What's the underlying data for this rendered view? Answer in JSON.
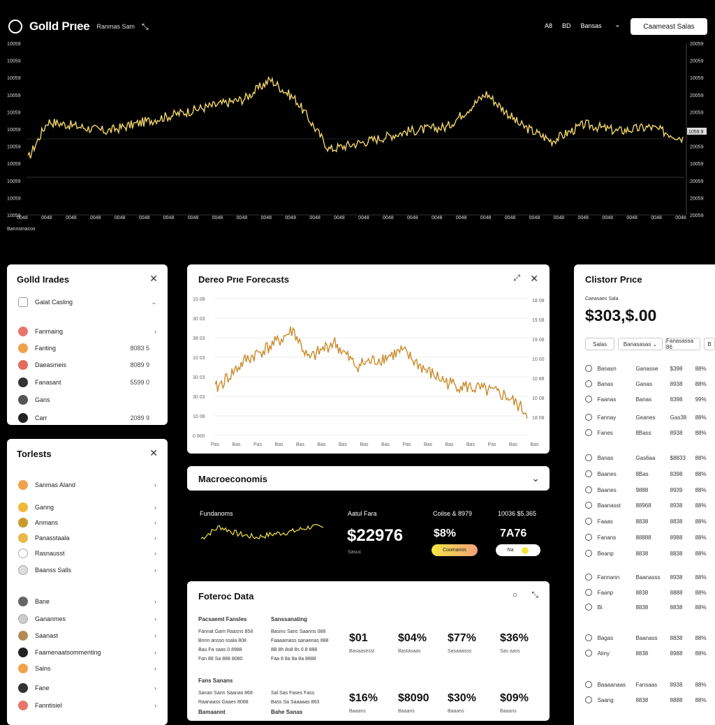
{
  "header": {
    "title": "Golld Prıee",
    "subtitle": "Ranmas Sam",
    "nav": [
      "A8",
      "BD",
      "Bansas"
    ],
    "connect_label": "Caameast Salas"
  },
  "main_chart": {
    "y_left": [
      "10059",
      "10059",
      "10059",
      "10059",
      "10059",
      "10059",
      "10059",
      "10059",
      "10059",
      "10059",
      "10059"
    ],
    "y_right": [
      "20059",
      "20059",
      "10059",
      "20059",
      "20059",
      "20059",
      "20059",
      "10059",
      "20059",
      "20059",
      "20059"
    ],
    "x_label": "Bannsmacos",
    "x_ticks_count": 28,
    "current_value": "1059.9"
  },
  "gold_trades": {
    "title": "Golld Irades",
    "filter": "Galat Casling",
    "rows": [
      {
        "label": "Fanmaing",
        "value": ""
      },
      {
        "label": "Fanting",
        "value": "8083 5"
      },
      {
        "label": "Daeasmeis",
        "value": "8089 9"
      },
      {
        "label": "Fanasant",
        "value": "5599 0"
      },
      {
        "label": "Gans",
        "value": ""
      },
      {
        "label": "Carr",
        "value": "2089 9"
      }
    ]
  },
  "forecasts_left": {
    "title": "Torlests",
    "rows": [
      {
        "label": "Sanmas Aland"
      },
      {
        "label": "Ganng"
      },
      {
        "label": "Anmans"
      },
      {
        "label": "Panasstaala"
      },
      {
        "label": "Rasnausst"
      },
      {
        "label": "Baanss Salls"
      },
      {
        "label": "Bane"
      },
      {
        "label": "Gananmes"
      },
      {
        "label": "Saanast"
      },
      {
        "label": "Faamenaatsommenting"
      },
      {
        "label": "Sains"
      },
      {
        "label": "Fane"
      },
      {
        "label": "Fanntisiel"
      }
    ]
  },
  "price_forecasts": {
    "title": "Dereo Prıe Forecasts",
    "y_left": [
      "10 08",
      "30 03",
      "38 03",
      "10 03",
      "30 03",
      "30 03",
      "10 08",
      "0 800"
    ],
    "y_right": [
      "18 08",
      "19 08",
      "19 08",
      "10 00",
      "10 88",
      "10 08",
      "18 08"
    ],
    "x_ticks": [
      "Pas",
      "Bas",
      "Pas",
      "Bas",
      "Bas",
      "Bas",
      "Bas",
      "Bas",
      "Bas",
      "Pas",
      "Bas",
      "Bas",
      "Bas",
      "Pas",
      "Bas",
      "Bas"
    ]
  },
  "macroeconomics": {
    "title": "Macroeconomis",
    "spark_label": "Fundanoms",
    "block1_label": "Aatul Fara",
    "block1_value": "$22976",
    "block1_sub": "Sasuc",
    "block2_label": "Coilse & 8979",
    "block2_value": "$8%",
    "block2_btn": "Coomanos",
    "block3_label": "10036 $5.365",
    "block3_value": "7A76",
    "block3_btn": "Na"
  },
  "forecast_data": {
    "title": "Foteroc Data",
    "col1_head": "Pacsaemt Fansles",
    "col1_lines": [
      "Fannat Gam Raasns 858",
      "Bnnn ansso ssala 808",
      "Bau Fa saas 0 8988",
      "Fan 88 Sa 888 8080"
    ],
    "col2_head": "Sanssanating",
    "col2_lines": [
      "Basins Sanc Saanns 088",
      "Faaaamass sanaenas 888",
      "8B 8h 8s8 8s 0.8 888",
      "Faa 8 8a 8a 8a 8888"
    ],
    "col3_head": "Fans Sanans",
    "col3_lines": [
      "Sanan Sann Saanas 868",
      "Raanaass Gaaes 8088"
    ],
    "col4_lines": [
      "Sal Sas Fases Fass",
      "Bass Sa Saaaaas 863"
    ],
    "foot1": "Bamaannt",
    "foot2": "Bahe Sanas",
    "stats_row1": [
      {
        "v": "$01",
        "l": "Basaasesst"
      },
      {
        "v": "$04%",
        "l": "Bastasaas"
      },
      {
        "v": "$77%",
        "l": "Sasaaasss"
      },
      {
        "v": "$36%",
        "l": "Sas aass"
      }
    ],
    "stats_row2": [
      {
        "v": "$16%",
        "l": "Baaans"
      },
      {
        "v": "$8090",
        "l": "Baaans"
      },
      {
        "v": "$30%",
        "l": "Baaans"
      },
      {
        "v": "$09%",
        "l": "Baaans"
      }
    ]
  },
  "custom_price": {
    "title": "Clistorr Prıce",
    "sub": "Caeasaes Sala",
    "price": "$303,$.00",
    "tabs": [
      "Salas",
      "Banasasas",
      "Fanasassa 86",
      "B"
    ],
    "rows": [
      [
        "Banasn",
        "Ganasse",
        "$398",
        "88%"
      ],
      [
        "Banas",
        "Ganas",
        "8938",
        "88%"
      ],
      [
        "Faanas",
        "Banas",
        "8398",
        "99%"
      ],
      [
        "Fannay",
        "Geanes",
        "Gas38",
        "88%"
      ],
      [
        "Fanes",
        "8Bass",
        "8938",
        "88%"
      ],
      [
        "Banas",
        "Gas6aa",
        "$8833",
        "88%"
      ],
      [
        "Baanes",
        "8Bas",
        "8398",
        "88%"
      ],
      [
        "Baanes",
        "9888",
        "8939",
        "88%"
      ],
      [
        "Baanasst",
        "88968",
        "8938",
        "88%"
      ],
      [
        "Faaas",
        "8838",
        "8838",
        "88%"
      ],
      [
        "Fanans",
        "88888",
        "8988",
        "88%"
      ],
      [
        "Beanp",
        "8838",
        "8838",
        "88%"
      ],
      [
        "Fannann",
        "Baanasss",
        "8938",
        "88%"
      ],
      [
        "Faanp",
        "8838",
        "8888",
        "88%"
      ],
      [
        "Bi",
        "8838",
        "8838",
        "88%"
      ],
      [
        "Bagas",
        "Baanass",
        "8838",
        "88%"
      ],
      [
        "Aliny",
        "8838",
        "8988",
        "88%"
      ],
      [
        "Baaaanaas",
        "Fansaas",
        "8938",
        "88%"
      ],
      [
        "Saang",
        "8838",
        "8888",
        "88%"
      ]
    ]
  },
  "colors": {
    "gold": "#f2d76b",
    "forecast_line": "#c98a28",
    "accent_yellow": "#f5e642"
  }
}
